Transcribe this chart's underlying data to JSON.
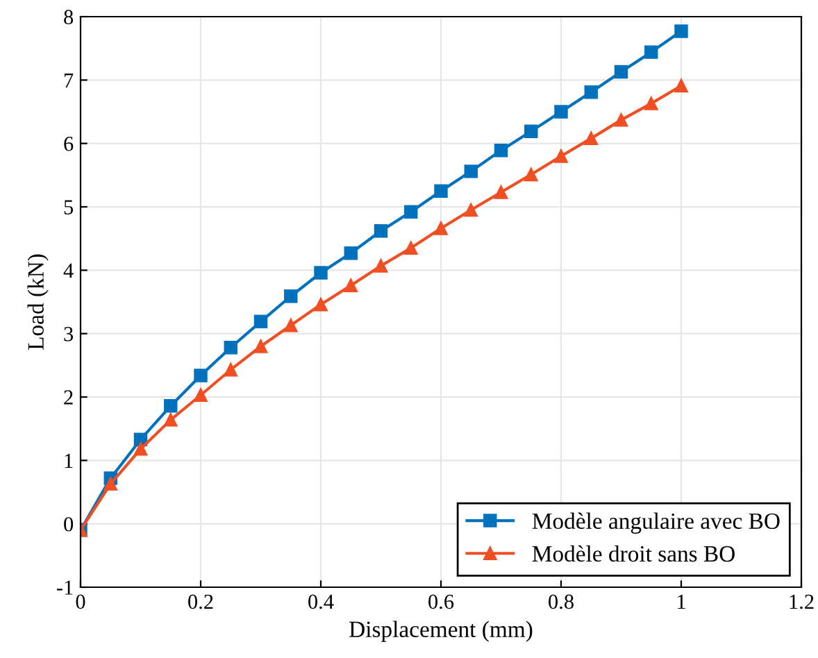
{
  "chart_data": {
    "type": "line",
    "xlabel": "Displacement (mm)",
    "ylabel": "Load (kN)",
    "xlim": [
      0,
      1.2
    ],
    "xticks": [
      0,
      0.2,
      0.4,
      0.6,
      0.8,
      1,
      1.2
    ],
    "ylim": [
      -1,
      8
    ],
    "yticks": [
      -1,
      0,
      1,
      2,
      3,
      4,
      5,
      6,
      7,
      8
    ],
    "grid": true,
    "legend": "bottom right",
    "line_style": "solid",
    "x": [
      0,
      0.05,
      0.1,
      0.15,
      0.2,
      0.25,
      0.3,
      0.35,
      0.4,
      0.45,
      0.5,
      0.55,
      0.6,
      0.65,
      0.7,
      0.75,
      0.8,
      0.85,
      0.9,
      0.95,
      1
    ],
    "series": [
      {
        "name": "Modèle angulaire avec BO",
        "color": "#0072bd",
        "marker": "square",
        "values": [
          -0.1,
          0.72,
          1.33,
          1.86,
          2.34,
          2.78,
          3.19,
          3.59,
          3.96,
          4.27,
          4.62,
          4.92,
          5.25,
          5.56,
          5.89,
          6.19,
          6.5,
          6.81,
          7.13,
          7.44,
          7.77
        ]
      },
      {
        "name": "Modèle droit sans BO",
        "color": "#f04e23",
        "marker": "triangle",
        "values": [
          -0.1,
          0.63,
          1.18,
          1.64,
          2.03,
          2.43,
          2.8,
          3.13,
          3.46,
          3.76,
          4.07,
          4.35,
          4.66,
          4.95,
          5.23,
          5.51,
          5.8,
          6.08,
          6.37,
          6.63,
          6.91
        ]
      }
    ]
  }
}
